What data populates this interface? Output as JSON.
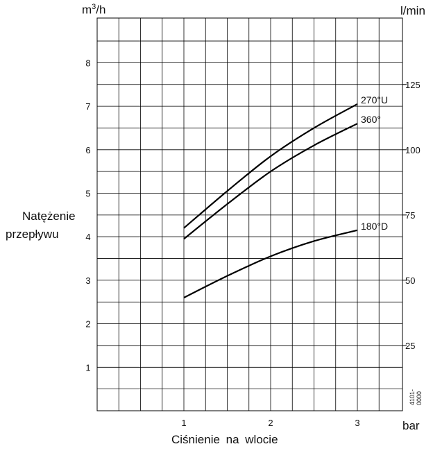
{
  "chart_data": {
    "type": "line",
    "title": "",
    "xlabel": "Ciśnienie na wlocie",
    "x_unit": "bar",
    "ylabel_left": [
      "Natężenie",
      "przepływu"
    ],
    "y_unit_left": "m³/h",
    "y_unit_left_base": "m",
    "y_unit_left_sup": "3",
    "y_unit_left_rest": "/h",
    "y_unit_right": "l/min",
    "xlim": [
      0,
      3.5
    ],
    "ylim": [
      0,
      9
    ],
    "x_ticks": [
      1,
      2,
      3
    ],
    "y_ticks_left": [
      1,
      2,
      3,
      4,
      5,
      6,
      7,
      8
    ],
    "y_ticks_right": [
      25,
      50,
      75,
      100,
      125
    ],
    "grid": true,
    "series": [
      {
        "name": "270°U",
        "x": [
          1,
          1.5,
          2,
          2.5,
          3
        ],
        "y": [
          4.2,
          5.05,
          5.85,
          6.5,
          7.05
        ]
      },
      {
        "name": "360°",
        "x": [
          1,
          1.5,
          2,
          2.5,
          3
        ],
        "y": [
          3.95,
          4.75,
          5.5,
          6.1,
          6.6
        ]
      },
      {
        "name": "180°D",
        "x": [
          1,
          1.5,
          2,
          2.5,
          3
        ],
        "y": [
          2.6,
          3.1,
          3.55,
          3.9,
          4.15
        ]
      }
    ],
    "code_label": "4101-0000"
  }
}
